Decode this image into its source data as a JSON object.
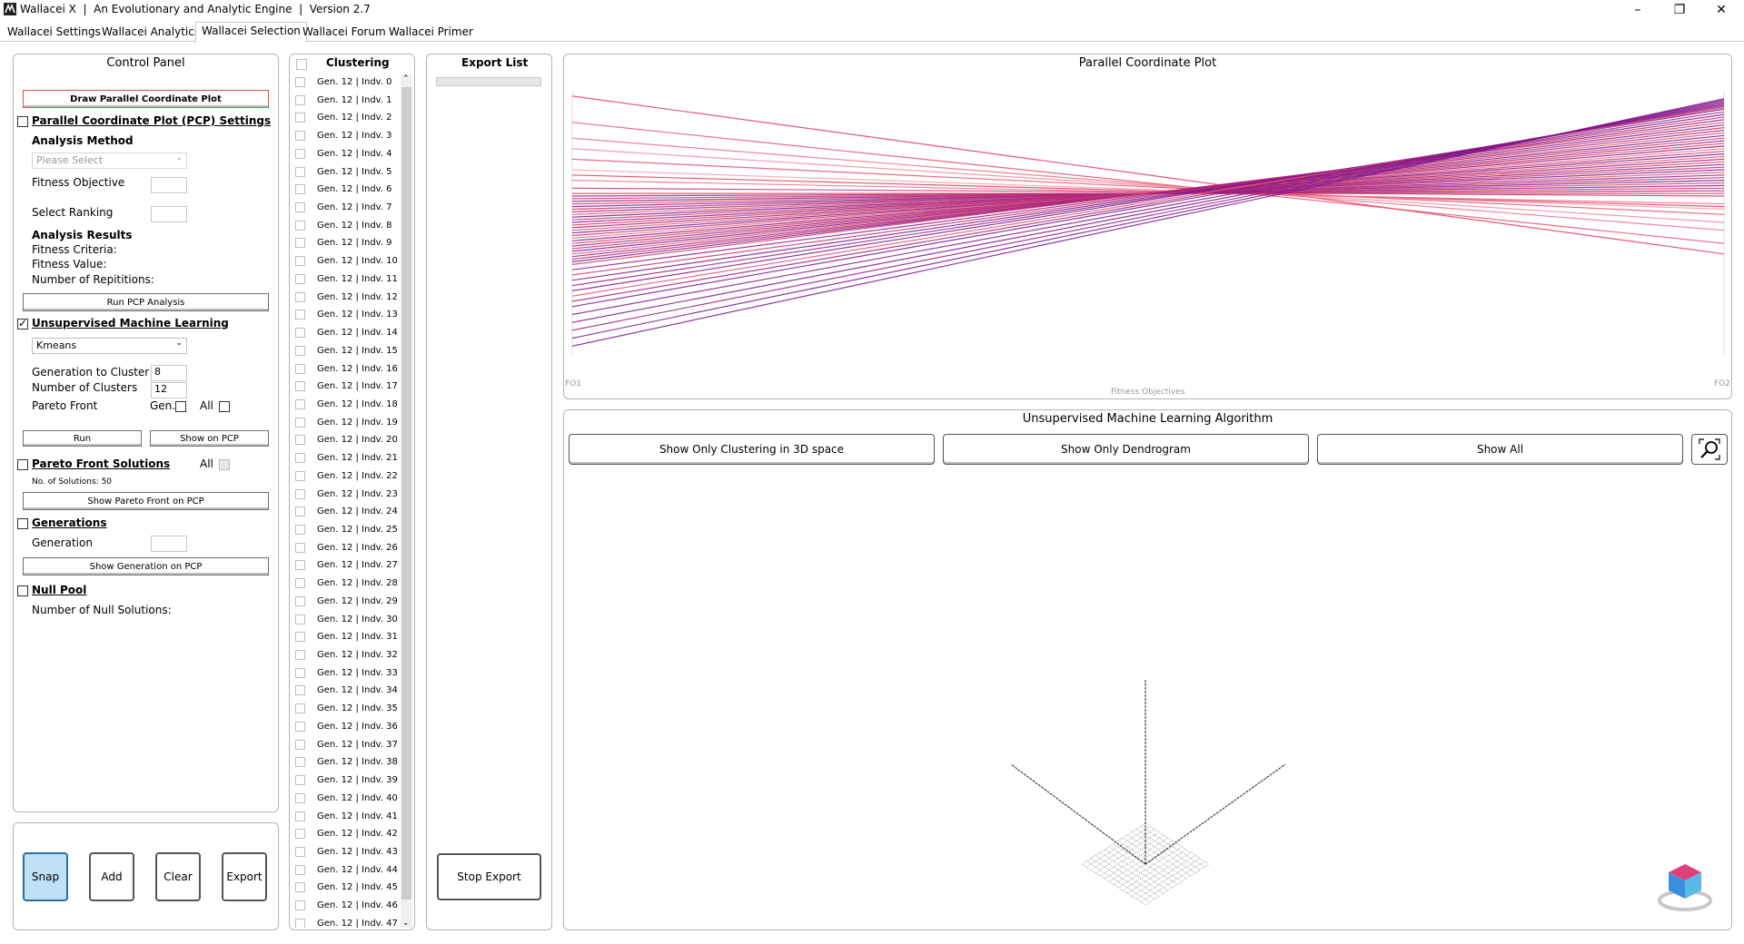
{
  "window": {
    "title": "Wallacei X  |  An Evolutionary and Analytic Engine  |  Version 2.7",
    "minimize_glyph": "–",
    "maximize_glyph": "❐",
    "close_glyph": "✕"
  },
  "tabs": [
    {
      "label": "Wallacei Settings"
    },
    {
      "label": "Wallacei Analytics"
    },
    {
      "label": "Wallacei Selection",
      "active": true
    },
    {
      "label": "Wallacei Forum"
    },
    {
      "label": "Wallacei Primer"
    }
  ],
  "control_panel": {
    "title": "Control Panel",
    "draw_pcp_button": "Draw Parallel Coordinate Plot",
    "pcp_settings": {
      "heading": "Parallel Coordinate Plot (PCP) Settings",
      "checked": false,
      "analysis_method_label": "Analysis Method",
      "analysis_method_placeholder": "Please Select",
      "fitness_objective_label": "Fitness Objective",
      "select_ranking_label": "Select Ranking",
      "analysis_results_label": "Analysis Results",
      "fitness_criteria_label": "Fitness Criteria:",
      "fitness_value_label": "Fitness Value:",
      "num_repetitions_label": "Number of Repititions:",
      "run_button": "Run PCP Analysis"
    },
    "unsupervised_ml": {
      "heading": "Unsupervised Machine Learning",
      "checked": true,
      "algorithm": "Kmeans",
      "generation_label": "Generation to Cluster",
      "generation_value": "8",
      "clusters_label": "Number of Clusters",
      "clusters_value": "12",
      "pareto_label": "Pareto Front",
      "gen_label": "Gen.",
      "all_label": "All",
      "run_button": "Run",
      "show_button": "Show on PCP"
    },
    "pareto_solutions": {
      "heading": "Pareto Front Solutions",
      "all_label": "All",
      "count_text": "No. of Solutions: 50",
      "show_button": "Show Pareto Front on PCP"
    },
    "generations": {
      "heading": "Generations",
      "generation_label": "Generation",
      "show_button": "Show Generation on PCP"
    },
    "null_pool": {
      "heading": "Null Pool",
      "count_label": "Number of Null Solutions:"
    }
  },
  "bottom_buttons": {
    "snap": "Snap",
    "add": "Add",
    "clear": "Clear",
    "export": "Export"
  },
  "clustering": {
    "title": "Clustering",
    "items": [
      "Gen. 12 | Indv. 0",
      "Gen. 12 | Indv. 1",
      "Gen. 12 | Indv. 2",
      "Gen. 12 | Indv. 3",
      "Gen. 12 | Indv. 4",
      "Gen. 12 | Indv. 5",
      "Gen. 12 | Indv. 6",
      "Gen. 12 | Indv. 7",
      "Gen. 12 | Indv. 8",
      "Gen. 12 | Indv. 9",
      "Gen. 12 | Indv. 10",
      "Gen. 12 | Indv. 11",
      "Gen. 12 | Indv. 12",
      "Gen. 12 | Indv. 13",
      "Gen. 12 | Indv. 14",
      "Gen. 12 | Indv. 15",
      "Gen. 12 | Indv. 16",
      "Gen. 12 | Indv. 17",
      "Gen. 12 | Indv. 18",
      "Gen. 12 | Indv. 19",
      "Gen. 12 | Indv. 20",
      "Gen. 12 | Indv. 21",
      "Gen. 12 | Indv. 22",
      "Gen. 12 | Indv. 23",
      "Gen. 12 | Indv. 24",
      "Gen. 12 | Indv. 25",
      "Gen. 12 | Indv. 26",
      "Gen. 12 | Indv. 27",
      "Gen. 12 | Indv. 28",
      "Gen. 12 | Indv. 29",
      "Gen. 12 | Indv. 30",
      "Gen. 12 | Indv. 31",
      "Gen. 12 | Indv. 32",
      "Gen. 12 | Indv. 33",
      "Gen. 12 | Indv. 34",
      "Gen. 12 | Indv. 35",
      "Gen. 12 | Indv. 36",
      "Gen. 12 | Indv. 37",
      "Gen. 12 | Indv. 38",
      "Gen. 12 | Indv. 39",
      "Gen. 12 | Indv. 40",
      "Gen. 12 | Indv. 41",
      "Gen. 12 | Indv. 42",
      "Gen. 12 | Indv. 43",
      "Gen. 12 | Indv. 44",
      "Gen. 12 | Indv. 45",
      "Gen. 12 | Indv. 46",
      "Gen. 12 | Indv. 47"
    ]
  },
  "export_list": {
    "title": "Export List",
    "stop_button": "Stop Export"
  },
  "pcp": {
    "title": "Parallel Coordinate Plot",
    "axis_left": "FO1",
    "axis_right": "FO2",
    "axis_caption": "Fitness Objectives",
    "line_colors": [
      "#e8305a",
      "#7a1490"
    ]
  },
  "ml": {
    "title": "Unsupervised Machine Learning Algorithm",
    "btn_3d": "Show Only Clustering in 3D space",
    "btn_dendrogram": "Show Only Dendrogram",
    "btn_all": "Show All",
    "zoom_icon": "zoom-extents-icon",
    "view_cube_icon": "view-cube-icon"
  },
  "chart_data": {
    "type": "line",
    "x": [
      "FO1",
      "FO2"
    ],
    "xlabel": "Fitness Objectives",
    "series_count": 50,
    "lines": [
      {
        "fo1": 0.98,
        "fo2": 0.38,
        "color": "#e23a5e"
      },
      {
        "fo1": 0.88,
        "fo2": 0.42,
        "color": "#e8506e"
      },
      {
        "fo1": 0.82,
        "fo2": 0.47,
        "color": "#ec7088"
      },
      {
        "fo1": 0.78,
        "fo2": 0.5,
        "color": "#f08aa0"
      },
      {
        "fo1": 0.74,
        "fo2": 0.53,
        "color": "#e8506e"
      },
      {
        "fo1": 0.7,
        "fo2": 0.55,
        "color": "#f3a0b2"
      },
      {
        "fo1": 0.68,
        "fo2": 0.56,
        "color": "#e23a5e"
      },
      {
        "fo1": 0.66,
        "fo2": 0.57,
        "color": "#ec7088"
      },
      {
        "fo1": 0.63,
        "fo2": 0.6,
        "color": "#c83070"
      },
      {
        "fo1": 0.61,
        "fo2": 0.61,
        "color": "#e23a5e"
      },
      {
        "fo1": 0.6,
        "fo2": 0.62,
        "color": "#a0207e"
      },
      {
        "fo1": 0.59,
        "fo2": 0.63,
        "color": "#d0306a"
      },
      {
        "fo1": 0.58,
        "fo2": 0.64,
        "color": "#8a1888"
      },
      {
        "fo1": 0.57,
        "fo2": 0.65,
        "color": "#e23a5e"
      },
      {
        "fo1": 0.56,
        "fo2": 0.66,
        "color": "#7a1490"
      },
      {
        "fo1": 0.55,
        "fo2": 0.67,
        "color": "#c02870"
      },
      {
        "fo1": 0.54,
        "fo2": 0.68,
        "color": "#9a1e80"
      },
      {
        "fo1": 0.53,
        "fo2": 0.69,
        "color": "#e8506e"
      },
      {
        "fo1": 0.52,
        "fo2": 0.7,
        "color": "#7a1490"
      },
      {
        "fo1": 0.51,
        "fo2": 0.71,
        "color": "#d0306a"
      },
      {
        "fo1": 0.5,
        "fo2": 0.72,
        "color": "#8a1888"
      },
      {
        "fo1": 0.49,
        "fo2": 0.73,
        "color": "#e23a5e"
      },
      {
        "fo1": 0.48,
        "fo2": 0.74,
        "color": "#a0207e"
      },
      {
        "fo1": 0.47,
        "fo2": 0.75,
        "color": "#e8506e"
      },
      {
        "fo1": 0.46,
        "fo2": 0.76,
        "color": "#7a1490"
      },
      {
        "fo1": 0.45,
        "fo2": 0.77,
        "color": "#c83070"
      },
      {
        "fo1": 0.44,
        "fo2": 0.78,
        "color": "#ec7088"
      },
      {
        "fo1": 0.43,
        "fo2": 0.79,
        "color": "#8a1888"
      },
      {
        "fo1": 0.42,
        "fo2": 0.8,
        "color": "#e23a5e"
      },
      {
        "fo1": 0.41,
        "fo2": 0.81,
        "color": "#9a1e80"
      },
      {
        "fo1": 0.4,
        "fo2": 0.82,
        "color": "#d0306a"
      },
      {
        "fo1": 0.39,
        "fo2": 0.83,
        "color": "#7a1490"
      },
      {
        "fo1": 0.38,
        "fo2": 0.84,
        "color": "#e8506e"
      },
      {
        "fo1": 0.37,
        "fo2": 0.85,
        "color": "#a0207e"
      },
      {
        "fo1": 0.36,
        "fo2": 0.86,
        "color": "#c02870"
      },
      {
        "fo1": 0.35,
        "fo2": 0.87,
        "color": "#7a1490"
      },
      {
        "fo1": 0.34,
        "fo2": 0.88,
        "color": "#e23a5e"
      },
      {
        "fo1": 0.32,
        "fo2": 0.89,
        "color": "#8a1888"
      },
      {
        "fo1": 0.3,
        "fo2": 0.9,
        "color": "#d0306a"
      },
      {
        "fo1": 0.28,
        "fo2": 0.91,
        "color": "#7a1490"
      },
      {
        "fo1": 0.26,
        "fo2": 0.92,
        "color": "#9a1e80"
      },
      {
        "fo1": 0.24,
        "fo2": 0.93,
        "color": "#7a1490"
      },
      {
        "fo1": 0.22,
        "fo2": 0.935,
        "color": "#e8506e"
      },
      {
        "fo1": 0.2,
        "fo2": 0.94,
        "color": "#a0207e"
      },
      {
        "fo1": 0.18,
        "fo2": 0.945,
        "color": "#7a1490"
      },
      {
        "fo1": 0.15,
        "fo2": 0.95,
        "color": "#8a1888"
      },
      {
        "fo1": 0.12,
        "fo2": 0.955,
        "color": "#7a1490"
      },
      {
        "fo1": 0.09,
        "fo2": 0.96,
        "color": "#9a1e80"
      },
      {
        "fo1": 0.06,
        "fo2": 0.965,
        "color": "#7a1490"
      },
      {
        "fo1": 0.03,
        "fo2": 0.97,
        "color": "#7a1490"
      }
    ]
  }
}
